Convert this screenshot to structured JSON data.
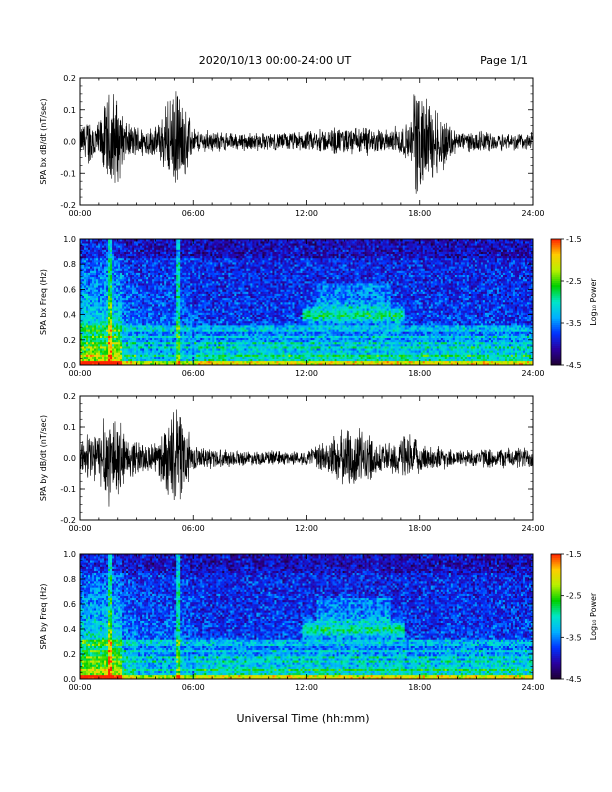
{
  "header": {
    "title": "2020/10/13  00:00-24:00 UT",
    "page": "Page 1/1"
  },
  "xlabel": "Universal Time (hh:mm)",
  "x_ticks": [
    "00:00",
    "06:00",
    "12:00",
    "18:00",
    "24:00"
  ],
  "colors": {
    "colormap": [
      "#1e0033",
      "#2a00a0",
      "#0033ff",
      "#00b0ff",
      "#00e6c8",
      "#00d000",
      "#b8f000",
      "#ffcc00",
      "#ff2200"
    ]
  },
  "chart_data": [
    {
      "type": "line",
      "ylabel": "SPA bx dB/dt (nT/sec)",
      "xlim": [
        0,
        24
      ],
      "ylim": [
        -0.2,
        0.2
      ],
      "y_ticks": [
        "0.2",
        "0.1",
        "0.0",
        "-0.1",
        "-0.2"
      ],
      "envelope": [
        {
          "t": 0.0,
          "amp": 0.05
        },
        {
          "t": 0.5,
          "amp": 0.09
        },
        {
          "t": 1.0,
          "amp": 0.07
        },
        {
          "t": 1.7,
          "amp": 0.2
        },
        {
          "t": 2.5,
          "amp": 0.06
        },
        {
          "t": 4.0,
          "amp": 0.05
        },
        {
          "t": 5.2,
          "amp": 0.19
        },
        {
          "t": 6.0,
          "amp": 0.04
        },
        {
          "t": 8.0,
          "amp": 0.03
        },
        {
          "t": 10.0,
          "amp": 0.03
        },
        {
          "t": 12.0,
          "amp": 0.035
        },
        {
          "t": 14.5,
          "amp": 0.05
        },
        {
          "t": 16.0,
          "amp": 0.04
        },
        {
          "t": 17.5,
          "amp": 0.06
        },
        {
          "t": 17.8,
          "amp": 0.2
        },
        {
          "t": 20.0,
          "amp": 0.035
        },
        {
          "t": 24.0,
          "amp": 0.03
        }
      ]
    },
    {
      "type": "heatmap",
      "ylabel": "SPA bx Freq (Hz)",
      "xlim": [
        0,
        24
      ],
      "ylim": [
        0.0,
        1.0
      ],
      "y_ticks": [
        "1.0",
        "0.8",
        "0.6",
        "0.4",
        "0.2",
        "0.0"
      ],
      "colorbar": {
        "label": "Log₁₀ Power",
        "range": [
          -4.5,
          -1.5
        ],
        "ticks": [
          "-1.5",
          "-2.5",
          "-3.5",
          "-4.5"
        ]
      },
      "features": "broadband activity 00:00-06:00; band near 0.4 Hz between 12:00 and 17:00"
    },
    {
      "type": "line",
      "ylabel": "SPA by dB/dt (nT/sec)",
      "xlim": [
        0,
        24
      ],
      "ylim": [
        -0.2,
        0.2
      ],
      "y_ticks": [
        "0.2",
        "0.1",
        "0.0",
        "-0.1",
        "-0.2"
      ],
      "envelope": [
        {
          "t": 0.0,
          "amp": 0.06
        },
        {
          "t": 0.5,
          "amp": 0.1
        },
        {
          "t": 1.0,
          "amp": 0.09
        },
        {
          "t": 1.7,
          "amp": 0.2
        },
        {
          "t": 2.5,
          "amp": 0.07
        },
        {
          "t": 4.0,
          "amp": 0.05
        },
        {
          "t": 5.2,
          "amp": 0.2
        },
        {
          "t": 6.0,
          "amp": 0.04
        },
        {
          "t": 9.0,
          "amp": 0.025
        },
        {
          "t": 12.0,
          "amp": 0.025
        },
        {
          "t": 14.5,
          "amp": 0.12
        },
        {
          "t": 16.0,
          "amp": 0.05
        },
        {
          "t": 17.5,
          "amp": 0.09
        },
        {
          "t": 18.0,
          "amp": 0.05
        },
        {
          "t": 20.0,
          "amp": 0.03
        },
        {
          "t": 24.0,
          "amp": 0.04
        }
      ]
    },
    {
      "type": "heatmap",
      "ylabel": "SPA by Freq (Hz)",
      "xlim": [
        0,
        24
      ],
      "ylim": [
        0.0,
        1.0
      ],
      "y_ticks": [
        "1.0",
        "0.8",
        "0.6",
        "0.4",
        "0.2",
        "0.0"
      ],
      "colorbar": {
        "label": "Log₁₀ Power",
        "range": [
          -4.5,
          -1.5
        ],
        "ticks": [
          "-1.5",
          "-2.5",
          "-3.5",
          "-4.5"
        ]
      },
      "features": "broadband activity 00:00-06:00; band near 0.4 Hz between 12:00 and 17:00"
    }
  ]
}
